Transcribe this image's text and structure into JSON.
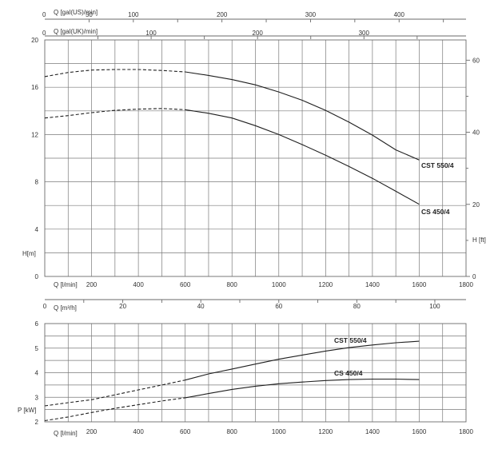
{
  "chart_data": [
    {
      "type": "line",
      "name_panel": "head",
      "x_label": "Q [l/min]",
      "x_range": [
        0,
        1800
      ],
      "x_ticks": [
        0,
        200,
        400,
        600,
        800,
        1000,
        1200,
        1400,
        1600,
        1800
      ],
      "y_label": "H[m]",
      "y_range": [
        0,
        20
      ],
      "y_ticks": [
        0,
        4,
        8,
        12,
        16,
        20
      ],
      "y2_label": "H [ft]",
      "y2_ticks": [
        0,
        20,
        40,
        60
      ],
      "top_axes": [
        {
          "label": "Q [gal(US)/min]",
          "ticks": [
            50,
            100,
            200,
            300,
            400
          ],
          "lpm_per_unit": 3.785
        },
        {
          "label": "Q [gal(UK)/min]",
          "ticks": [
            100,
            200,
            300
          ],
          "lpm_per_unit": 4.546
        }
      ],
      "mid_axis": {
        "label": "Q [m³/h]",
        "ticks": [
          0,
          20,
          40,
          60,
          80,
          100
        ],
        "lpm_per_unit": 16.667
      },
      "series": [
        {
          "name": "CST 550/4",
          "dashed_until": 600,
          "points": [
            [
              0,
              16.9
            ],
            [
              100,
              17.25
            ],
            [
              200,
              17.45
            ],
            [
              300,
              17.5
            ],
            [
              400,
              17.5
            ],
            [
              500,
              17.42
            ],
            [
              600,
              17.3
            ],
            [
              700,
              17.0
            ],
            [
              800,
              16.65
            ],
            [
              900,
              16.2
            ],
            [
              1000,
              15.6
            ],
            [
              1100,
              14.9
            ],
            [
              1200,
              14.05
            ],
            [
              1300,
              13.05
            ],
            [
              1400,
              11.95
            ],
            [
              1500,
              10.7
            ],
            [
              1600,
              9.85
            ]
          ]
        },
        {
          "name": "CS 450/4",
          "dashed_until": 600,
          "points": [
            [
              0,
              13.4
            ],
            [
              100,
              13.6
            ],
            [
              200,
              13.85
            ],
            [
              300,
              14.05
            ],
            [
              400,
              14.15
            ],
            [
              500,
              14.2
            ],
            [
              600,
              14.1
            ],
            [
              700,
              13.8
            ],
            [
              800,
              13.4
            ],
            [
              900,
              12.75
            ],
            [
              1000,
              12.0
            ],
            [
              1100,
              11.15
            ],
            [
              1200,
              10.25
            ],
            [
              1300,
              9.3
            ],
            [
              1400,
              8.3
            ],
            [
              1500,
              7.2
            ],
            [
              1600,
              6.1
            ]
          ]
        }
      ]
    },
    {
      "type": "line",
      "name_panel": "power",
      "x_label": "Q [l/min]",
      "x_range": [
        0,
        1800
      ],
      "x_ticks": [
        200,
        400,
        600,
        800,
        1000,
        1200,
        1400,
        1600,
        1800
      ],
      "y_label": "P [kW]",
      "y_range": [
        2,
        6
      ],
      "y_ticks": [
        2,
        3,
        4,
        5,
        6
      ],
      "series": [
        {
          "name": "CST 550/4",
          "dashed_until": 600,
          "points": [
            [
              0,
              2.65
            ],
            [
              100,
              2.78
            ],
            [
              200,
              2.9
            ],
            [
              300,
              3.1
            ],
            [
              400,
              3.3
            ],
            [
              500,
              3.5
            ],
            [
              600,
              3.7
            ],
            [
              700,
              3.95
            ],
            [
              800,
              4.15
            ],
            [
              900,
              4.35
            ],
            [
              1000,
              4.55
            ],
            [
              1100,
              4.72
            ],
            [
              1200,
              4.88
            ],
            [
              1300,
              5.02
            ],
            [
              1400,
              5.13
            ],
            [
              1500,
              5.22
            ],
            [
              1600,
              5.28
            ]
          ]
        },
        {
          "name": "CS 450/4",
          "dashed_until": 600,
          "points": [
            [
              0,
              2.05
            ],
            [
              100,
              2.2
            ],
            [
              200,
              2.38
            ],
            [
              300,
              2.55
            ],
            [
              400,
              2.7
            ],
            [
              500,
              2.85
            ],
            [
              600,
              2.98
            ],
            [
              700,
              3.15
            ],
            [
              800,
              3.32
            ],
            [
              900,
              3.45
            ],
            [
              1000,
              3.55
            ],
            [
              1100,
              3.62
            ],
            [
              1200,
              3.68
            ],
            [
              1300,
              3.72
            ],
            [
              1400,
              3.74
            ],
            [
              1500,
              3.74
            ],
            [
              1600,
              3.72
            ]
          ]
        }
      ]
    }
  ]
}
